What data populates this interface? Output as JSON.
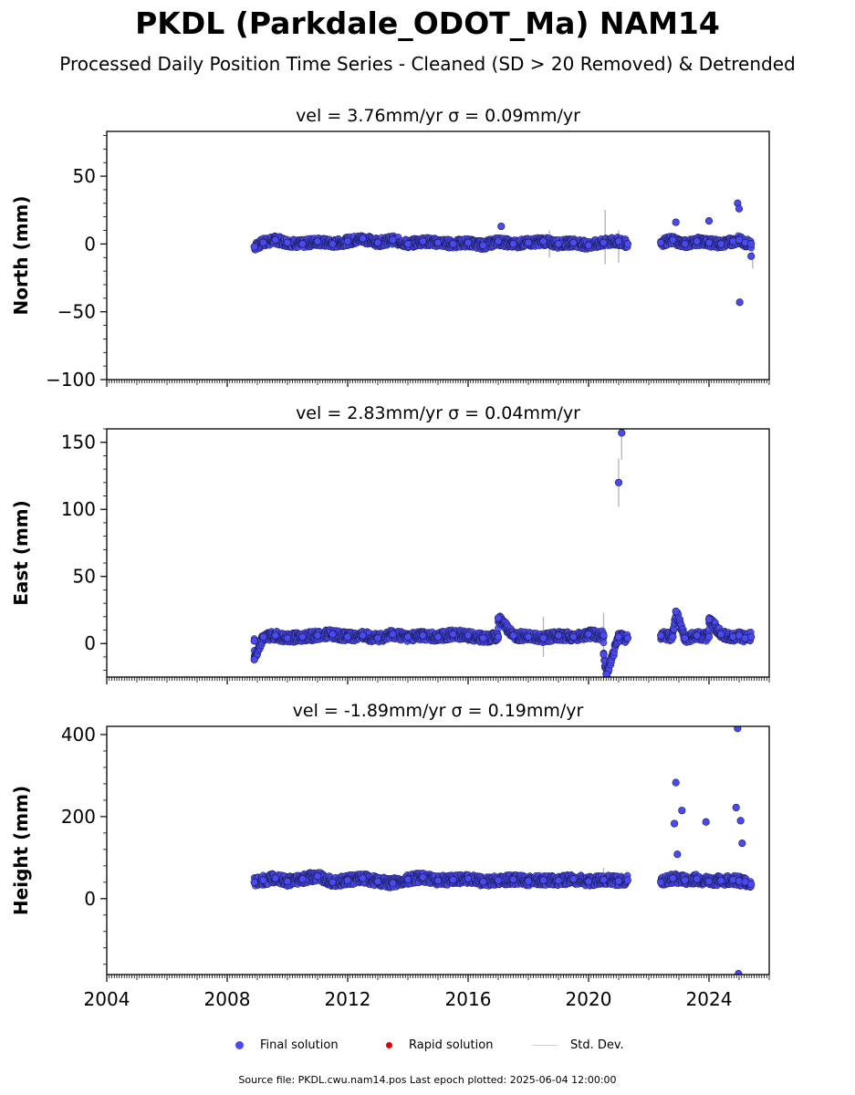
{
  "header": {
    "title": "PKDL (Parkdale_ODOT_Ma) NAM14",
    "subtitle": "Processed Daily Position Time Series - Cleaned (SD > 20 Removed) & Detrended"
  },
  "legend": {
    "final_label": "Final solution",
    "rapid_label": "Rapid solution",
    "std_label": "Std. Dev.",
    "final_color": "#4a4af0",
    "rapid_color": "#e00000",
    "std_color": "#cccccc"
  },
  "footer": {
    "text": "Source file: PKDL.cwu.nam14.pos  Last epoch plotted: 2025-06-04 12:00:00"
  },
  "chart_data": [
    {
      "type": "scatter",
      "component": "north",
      "title": "vel = 3.76mm/yr   σ = 0.09mm/yr",
      "ylabel": "North (mm)",
      "xlim": [
        2004,
        2026
      ],
      "ylim": [
        -100,
        83
      ],
      "yticks": [
        -100,
        -50,
        0,
        50
      ],
      "ytick_labels": [
        "−100",
        "−50",
        "0",
        "50"
      ],
      "series": [
        {
          "x": [
            2008.9,
            2009.2,
            2009.6,
            2010.0,
            2010.5,
            2011.0,
            2011.5,
            2012.0,
            2012.5,
            2013.0,
            2013.5,
            2014.0,
            2014.5,
            2015.0,
            2015.5,
            2016.0,
            2016.5,
            2017.0,
            2017.5,
            2018.0,
            2018.5,
            2019.0,
            2019.5,
            2020.0,
            2020.5,
            2021.0,
            2021.3,
            2022.4,
            2022.8,
            2023.2,
            2023.6,
            2024.0,
            2024.4,
            2024.8,
            2025.0,
            2025.2,
            2025.4,
            2017.1,
            2022.9,
            2024.0,
            2024.95,
            2025.0,
            2025.02,
            2025.4
          ],
          "y": [
            -2,
            1,
            3,
            1,
            0,
            2,
            0,
            2,
            4,
            1,
            3,
            0,
            2,
            1,
            0,
            1,
            -1,
            2,
            0,
            1,
            2,
            0,
            1,
            -1,
            1,
            2,
            0,
            1,
            3,
            0,
            2,
            1,
            0,
            2,
            3,
            1,
            0,
            13,
            16,
            17,
            30,
            26,
            -43,
            -9
          ]
        }
      ],
      "std_dev": [
        {
          "x": 2018.7,
          "y": 0,
          "sd": 10
        },
        {
          "x": 2020.55,
          "y": 5,
          "sd": 20
        },
        {
          "x": 2021.0,
          "y": -2,
          "sd": 12
        },
        {
          "x": 2025.45,
          "y": -8,
          "sd": 10
        }
      ]
    },
    {
      "type": "scatter",
      "component": "east",
      "title": "vel = 2.83mm/yr   σ = 0.04mm/yr",
      "ylabel": "East (mm)",
      "xlim": [
        2004,
        2026
      ],
      "ylim": [
        -25,
        160
      ],
      "yticks": [
        0,
        50,
        100,
        150
      ],
      "ytick_labels": [
        "0",
        "50",
        "100",
        "150"
      ],
      "series": [
        {
          "x": [
            2008.9,
            2009.2,
            2009.6,
            2010.0,
            2010.5,
            2011.0,
            2011.5,
            2012.0,
            2012.5,
            2013.0,
            2013.5,
            2014.0,
            2014.5,
            2015.0,
            2015.5,
            2016.0,
            2016.5,
            2017.0,
            2017.5,
            2018.0,
            2018.5,
            2019.0,
            2019.5,
            2020.0,
            2020.5,
            2021.0,
            2021.3,
            2022.4,
            2022.8,
            2023.2,
            2023.6,
            2024.0,
            2024.4,
            2024.8,
            2025.0,
            2025.2,
            2025.4,
            2008.9,
            2017.0,
            2020.6,
            2020.5,
            2021.0,
            2021.1,
            2022.9,
            2024.0
          ],
          "y": [
            2,
            5,
            6,
            4,
            5,
            6,
            7,
            5,
            6,
            4,
            7,
            5,
            6,
            5,
            7,
            6,
            4,
            5,
            6,
            5,
            4,
            6,
            5,
            7,
            6,
            5,
            4,
            6,
            5,
            4,
            6,
            5,
            7,
            5,
            6,
            4,
            5,
            -12,
            19,
            -23,
            -8,
            120,
            157,
            24,
            18
          ]
        }
      ],
      "std_dev": [
        {
          "x": 2018.5,
          "y": 5,
          "sd": 15
        },
        {
          "x": 2020.5,
          "y": 5,
          "sd": 18
        },
        {
          "x": 2021.0,
          "y": 120,
          "sd": 18
        },
        {
          "x": 2021.1,
          "y": 157,
          "sd": 20
        }
      ]
    },
    {
      "type": "scatter",
      "component": "height",
      "title": "vel = -1.89mm/yr   σ = 0.19mm/yr",
      "ylabel": "Height (mm)",
      "xlim": [
        2004,
        2026
      ],
      "ylim": [
        -185,
        420
      ],
      "yticks": [
        0,
        200,
        400
      ],
      "ytick_labels": [
        "0",
        "200",
        "400"
      ],
      "xticks": [
        2004,
        2008,
        2012,
        2016,
        2020,
        2024
      ],
      "xtick_labels": [
        "2004",
        "2008",
        "2012",
        "2016",
        "2020",
        "2024"
      ],
      "series": [
        {
          "x": [
            2008.9,
            2009.2,
            2009.6,
            2010.0,
            2010.5,
            2011.0,
            2011.5,
            2012.0,
            2012.5,
            2013.0,
            2013.5,
            2014.0,
            2014.5,
            2015.0,
            2015.5,
            2016.0,
            2016.5,
            2017.0,
            2017.5,
            2018.0,
            2018.5,
            2019.0,
            2019.5,
            2020.0,
            2020.5,
            2021.0,
            2021.3,
            2022.4,
            2022.8,
            2023.2,
            2023.6,
            2024.0,
            2024.4,
            2024.8,
            2025.0,
            2025.2,
            2025.4,
            2022.9,
            2022.85,
            2023.1,
            2023.9,
            2024.9,
            2024.95,
            2025.05,
            2025.1,
            2024.98,
            2022.95
          ],
          "y": [
            40,
            45,
            50,
            42,
            48,
            55,
            40,
            45,
            50,
            42,
            38,
            47,
            52,
            44,
            46,
            49,
            41,
            45,
            47,
            43,
            45,
            44,
            48,
            42,
            46,
            43,
            45,
            40,
            50,
            45,
            48,
            42,
            44,
            46,
            43,
            41,
            35,
            283,
            183,
            215,
            187,
            222,
            415,
            190,
            135,
            -183,
            108
          ]
        }
      ],
      "std_dev": [
        {
          "x": 2020.5,
          "y": 50,
          "sd": 25
        }
      ]
    }
  ]
}
